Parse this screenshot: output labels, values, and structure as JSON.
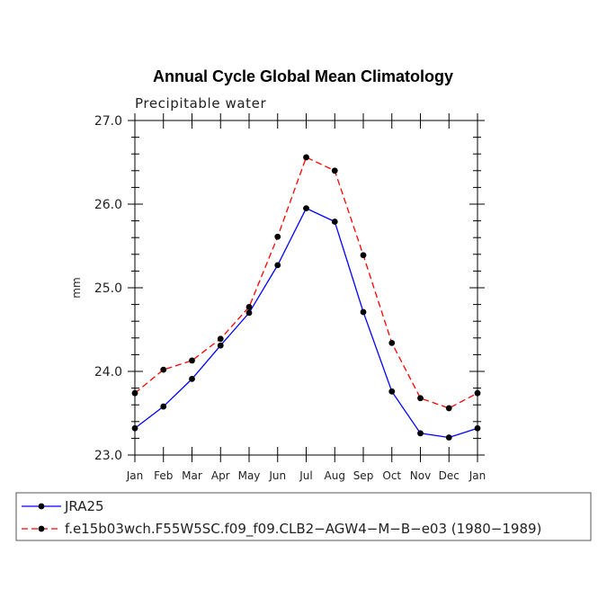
{
  "chart_data": {
    "type": "line",
    "title": "Annual Cycle Global Mean Climatology",
    "subtitle": "Precipitable water",
    "xlabel": "",
    "ylabel": "mm",
    "ylim": [
      23.0,
      27.0
    ],
    "yticks": [
      "23.0",
      "24.0",
      "25.0",
      "26.0",
      "27.0"
    ],
    "grid": false,
    "categories": [
      "Jan",
      "Feb",
      "Mar",
      "Apr",
      "May",
      "Jun",
      "Jul",
      "Aug",
      "Sep",
      "Oct",
      "Nov",
      "Dec",
      "Jan"
    ],
    "series": [
      {
        "name": "JRA25",
        "color": "#0000ff",
        "dash": "solid",
        "values": [
          23.32,
          23.58,
          23.91,
          24.31,
          24.7,
          25.27,
          25.95,
          25.79,
          24.71,
          23.76,
          23.26,
          23.21,
          23.32
        ]
      },
      {
        "name": "f.e15b03wch.F55W5SC.f09_f09.CLB2−AGW4−M−B−e03 (1980−1989)",
        "color": "#ff0000",
        "dash": "dashed",
        "values": [
          23.74,
          24.02,
          24.13,
          24.39,
          24.77,
          25.61,
          26.56,
          26.4,
          25.39,
          24.34,
          23.68,
          23.56,
          23.74
        ]
      }
    ],
    "legend_position": "bottom"
  }
}
